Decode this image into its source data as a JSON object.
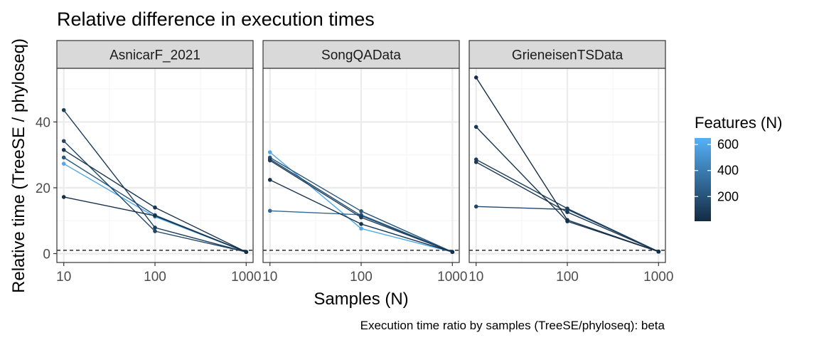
{
  "title": "Relative difference in execution times",
  "caption": "Execution time ratio by samples (TreeSE/phyloseq):  beta",
  "colors": {
    "low": "#132B43",
    "high": "#56B1F7",
    "panel_bg": "#ffffff",
    "grid_major": "#ebebeb",
    "grid_minor": "#f5f5f5",
    "strip_bg": "#d9d9d9",
    "border": "#333333",
    "reference_line": "#000000"
  },
  "chart_data": {
    "type": "line",
    "title": "Relative difference in execution times",
    "xlabel": "Samples (N)",
    "ylabel": "Relative time (TreeSE / phyloseq)",
    "x_scale": "log10",
    "x_ticks": [
      10,
      100,
      1000
    ],
    "x_tick_labels": [
      "10",
      "100",
      "1000"
    ],
    "y_ticks": [
      0,
      20,
      40
    ],
    "y_tick_labels": [
      "0",
      "20",
      "40"
    ],
    "xlim": [
      8.4,
      1190
    ],
    "ylim": [
      -2.7,
      56.3
    ],
    "reference_line": {
      "y": 1,
      "style": "dashed"
    },
    "grid": true,
    "legend": {
      "title": "Features (N)",
      "type": "colorbar",
      "placement": "right",
      "ticks": [
        200,
        400,
        600
      ],
      "tick_labels": [
        "200",
        "400",
        "600"
      ],
      "range": [
        10,
        650
      ]
    },
    "panels": [
      {
        "name": "AsnicarF_2021",
        "series": [
          {
            "features": 600,
            "x": [
              10,
              100,
              1000
            ],
            "y": [
              27.3,
              11.2,
              0.5
            ]
          },
          {
            "features": 220,
            "x": [
              10,
              100,
              1000
            ],
            "y": [
              29.2,
              11.7,
              0.5
            ]
          },
          {
            "features": 140,
            "x": [
              10,
              100,
              1000
            ],
            "y": [
              34.2,
              6.8,
              0.5
            ]
          },
          {
            "features": 100,
            "x": [
              10,
              100,
              1000
            ],
            "y": [
              43.6,
              7.9,
              0.5
            ]
          },
          {
            "features": 60,
            "x": [
              10,
              100,
              1000
            ],
            "y": [
              31.5,
              14.0,
              0.5
            ]
          },
          {
            "features": 30,
            "x": [
              10,
              100,
              1000
            ],
            "y": [
              17.2,
              11.5,
              0.5
            ]
          }
        ]
      },
      {
        "name": "SongQAData",
        "series": [
          {
            "features": 600,
            "x": [
              10,
              100,
              1000
            ],
            "y": [
              30.8,
              7.6,
              0.5
            ]
          },
          {
            "features": 300,
            "x": [
              10,
              100,
              1000
            ],
            "y": [
              13.0,
              11.8,
              0.5
            ]
          },
          {
            "features": 220,
            "x": [
              10,
              100,
              1000
            ],
            "y": [
              29.2,
              12.9,
              0.5
            ]
          },
          {
            "features": 140,
            "x": [
              10,
              100,
              1000
            ],
            "y": [
              28.7,
              11.5,
              0.5
            ]
          },
          {
            "features": 100,
            "x": [
              10,
              100,
              1000
            ],
            "y": [
              28.3,
              11.0,
              0.5
            ]
          },
          {
            "features": 40,
            "x": [
              10,
              100,
              1000
            ],
            "y": [
              22.4,
              9.0,
              0.5
            ]
          }
        ]
      },
      {
        "name": "GrieneisenTSData",
        "series": [
          {
            "features": 140,
            "x": [
              10,
              100,
              1000
            ],
            "y": [
              14.3,
              13.4,
              0.6
            ]
          },
          {
            "features": 100,
            "x": [
              10,
              100,
              1000
            ],
            "y": [
              28.6,
              13.7,
              0.6
            ]
          },
          {
            "features": 80,
            "x": [
              10,
              100,
              1000
            ],
            "y": [
              27.8,
              12.6,
              0.6
            ]
          },
          {
            "features": 60,
            "x": [
              10,
              100,
              1000
            ],
            "y": [
              38.5,
              9.8,
              0.6
            ]
          },
          {
            "features": 30,
            "x": [
              10,
              100,
              1000
            ],
            "y": [
              53.5,
              10.2,
              0.6
            ]
          }
        ]
      }
    ]
  }
}
